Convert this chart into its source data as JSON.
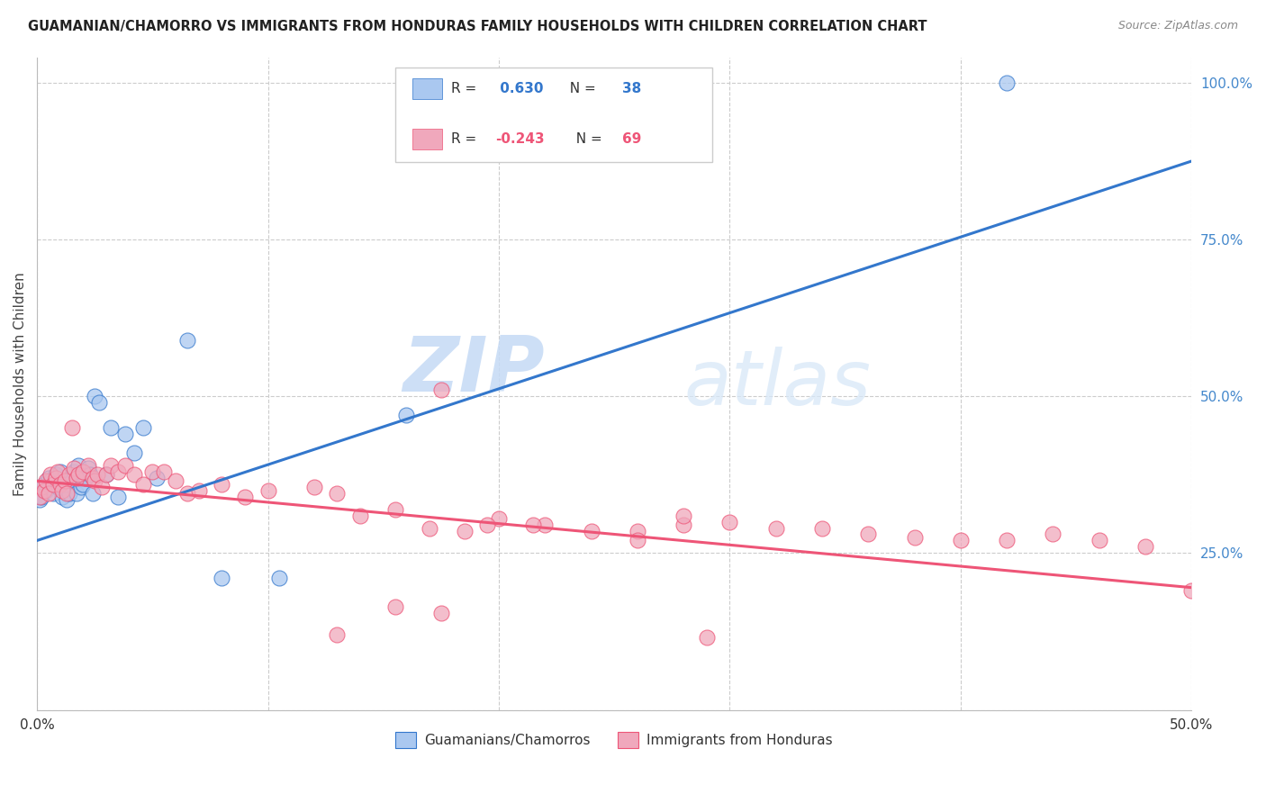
{
  "title": "GUAMANIAN/CHAMORRO VS IMMIGRANTS FROM HONDURAS FAMILY HOUSEHOLDS WITH CHILDREN CORRELATION CHART",
  "source": "Source: ZipAtlas.com",
  "ylabel": "Family Households with Children",
  "x_min": 0.0,
  "x_max": 0.5,
  "y_min": 0.0,
  "y_max": 1.04,
  "color_blue": "#aac8f0",
  "color_pink": "#f0a8bc",
  "line_blue": "#3377cc",
  "line_pink": "#ee5577",
  "watermark_zip": "ZIP",
  "watermark_atlas": "atlas",
  "legend_r1_val": "0.630",
  "legend_n1_val": "38",
  "legend_r2_val": "-0.243",
  "legend_n2_val": "69",
  "blue_line_x": [
    0.0,
    0.5
  ],
  "blue_line_y": [
    0.27,
    0.875
  ],
  "pink_line_x": [
    0.0,
    0.5
  ],
  "pink_line_y": [
    0.365,
    0.195
  ],
  "blue_scatter_x": [
    0.001,
    0.002,
    0.003,
    0.004,
    0.005,
    0.006,
    0.007,
    0.008,
    0.009,
    0.01,
    0.011,
    0.012,
    0.013,
    0.014,
    0.015,
    0.016,
    0.017,
    0.018,
    0.019,
    0.02,
    0.021,
    0.022,
    0.023,
    0.024,
    0.025,
    0.027,
    0.03,
    0.032,
    0.035,
    0.038,
    0.042,
    0.046,
    0.052,
    0.065,
    0.08,
    0.105,
    0.16,
    0.42
  ],
  "blue_scatter_y": [
    0.335,
    0.34,
    0.36,
    0.35,
    0.37,
    0.365,
    0.345,
    0.375,
    0.355,
    0.38,
    0.34,
    0.36,
    0.335,
    0.345,
    0.365,
    0.38,
    0.345,
    0.39,
    0.355,
    0.36,
    0.37,
    0.385,
    0.375,
    0.345,
    0.5,
    0.49,
    0.375,
    0.45,
    0.34,
    0.44,
    0.41,
    0.45,
    0.37,
    0.59,
    0.21,
    0.21,
    0.47,
    1.0
  ],
  "pink_scatter_x": [
    0.001,
    0.002,
    0.003,
    0.004,
    0.005,
    0.006,
    0.007,
    0.008,
    0.009,
    0.01,
    0.011,
    0.012,
    0.013,
    0.014,
    0.015,
    0.016,
    0.017,
    0.018,
    0.02,
    0.022,
    0.024,
    0.025,
    0.026,
    0.028,
    0.03,
    0.032,
    0.035,
    0.038,
    0.042,
    0.046,
    0.05,
    0.055,
    0.06,
    0.065,
    0.07,
    0.08,
    0.09,
    0.1,
    0.12,
    0.13,
    0.14,
    0.155,
    0.17,
    0.185,
    0.2,
    0.22,
    0.24,
    0.26,
    0.28,
    0.3,
    0.32,
    0.34,
    0.36,
    0.38,
    0.4,
    0.42,
    0.44,
    0.46,
    0.48,
    0.5,
    0.175,
    0.195,
    0.215,
    0.13,
    0.28,
    0.29,
    0.155,
    0.175,
    0.26
  ],
  "pink_scatter_y": [
    0.34,
    0.355,
    0.35,
    0.365,
    0.345,
    0.375,
    0.36,
    0.37,
    0.38,
    0.36,
    0.35,
    0.365,
    0.345,
    0.375,
    0.45,
    0.385,
    0.37,
    0.375,
    0.38,
    0.39,
    0.37,
    0.365,
    0.375,
    0.355,
    0.375,
    0.39,
    0.38,
    0.39,
    0.375,
    0.36,
    0.38,
    0.38,
    0.365,
    0.345,
    0.35,
    0.36,
    0.34,
    0.35,
    0.355,
    0.345,
    0.31,
    0.32,
    0.29,
    0.285,
    0.305,
    0.295,
    0.285,
    0.285,
    0.295,
    0.3,
    0.29,
    0.29,
    0.28,
    0.275,
    0.27,
    0.27,
    0.28,
    0.27,
    0.26,
    0.19,
    0.51,
    0.295,
    0.295,
    0.12,
    0.31,
    0.115,
    0.165,
    0.155,
    0.27
  ]
}
